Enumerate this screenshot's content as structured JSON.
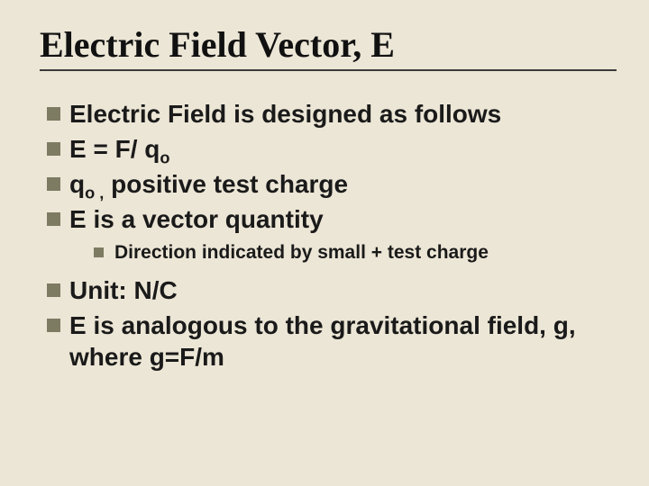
{
  "slide": {
    "title": "Electric Field Vector, E",
    "background_color": "#ece6d6",
    "bullet_color": "#7d7b62",
    "rule_color": "#3a3a3a",
    "title_fontsize": 40,
    "l1_fontsize": 28,
    "l2_fontsize": 21,
    "items": [
      {
        "level": 1,
        "html": "Electric Field is designed as follows"
      },
      {
        "level": 1,
        "html": "E = F/ q<sub>o</sub>"
      },
      {
        "level": 1,
        "html": "q<sub>o ,</sub> positive test charge"
      },
      {
        "level": 1,
        "html": "E is a vector quantity"
      },
      {
        "level": 2,
        "html": "Direction indicated by small + test charge"
      },
      {
        "level": 1,
        "html": "Unit: N/C"
      },
      {
        "level": 1,
        "html": "E is analogous to the gravitational field, g, where g=F/m"
      }
    ]
  }
}
